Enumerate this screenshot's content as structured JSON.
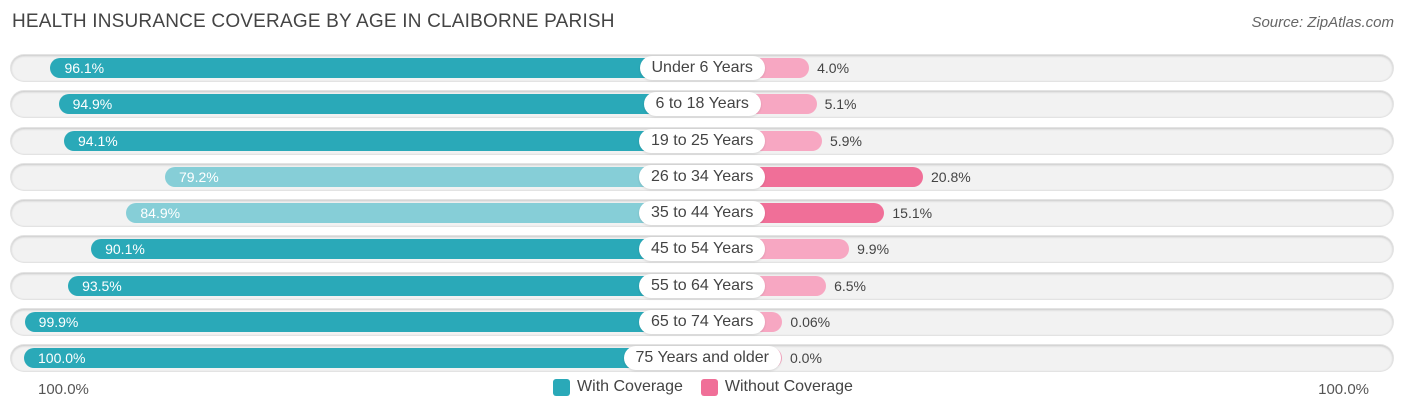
{
  "title": "HEALTH INSURANCE COVERAGE BY AGE IN CLAIBORNE PARISH",
  "source": "Source: ZipAtlas.com",
  "colors": {
    "with_coverage": "#2aa9b8",
    "with_coverage_light": "#86ced7",
    "without_coverage": "#f06f98",
    "without_coverage_light": "#f7a7c2"
  },
  "chart_data": {
    "type": "bar",
    "orientation": "diverging-horizontal",
    "categories": [
      "Under 6 Years",
      "6 to 18 Years",
      "19 to 25 Years",
      "26 to 34 Years",
      "35 to 44 Years",
      "45 to 54 Years",
      "55 to 64 Years",
      "65 to 74 Years",
      "75 Years and older"
    ],
    "series": [
      {
        "name": "With Coverage",
        "values": [
          96.1,
          94.9,
          94.1,
          79.2,
          84.9,
          90.1,
          93.5,
          99.9,
          100.0
        ],
        "labels": [
          "96.1%",
          "94.9%",
          "94.1%",
          "79.2%",
          "84.9%",
          "90.1%",
          "93.5%",
          "99.9%",
          "100.0%"
        ]
      },
      {
        "name": "Without Coverage",
        "values": [
          4.0,
          5.1,
          5.9,
          20.8,
          15.1,
          9.9,
          6.5,
          0.06,
          0.0
        ],
        "labels": [
          "4.0%",
          "5.1%",
          "5.9%",
          "20.8%",
          "15.1%",
          "9.9%",
          "6.5%",
          "0.06%",
          "0.0%"
        ]
      }
    ],
    "axis": {
      "left_label": "100.0%",
      "right_label": "100.0%",
      "range": [
        0,
        100
      ]
    },
    "legend": {
      "position": "bottom-center",
      "entries": [
        "With Coverage",
        "Without Coverage"
      ]
    }
  }
}
